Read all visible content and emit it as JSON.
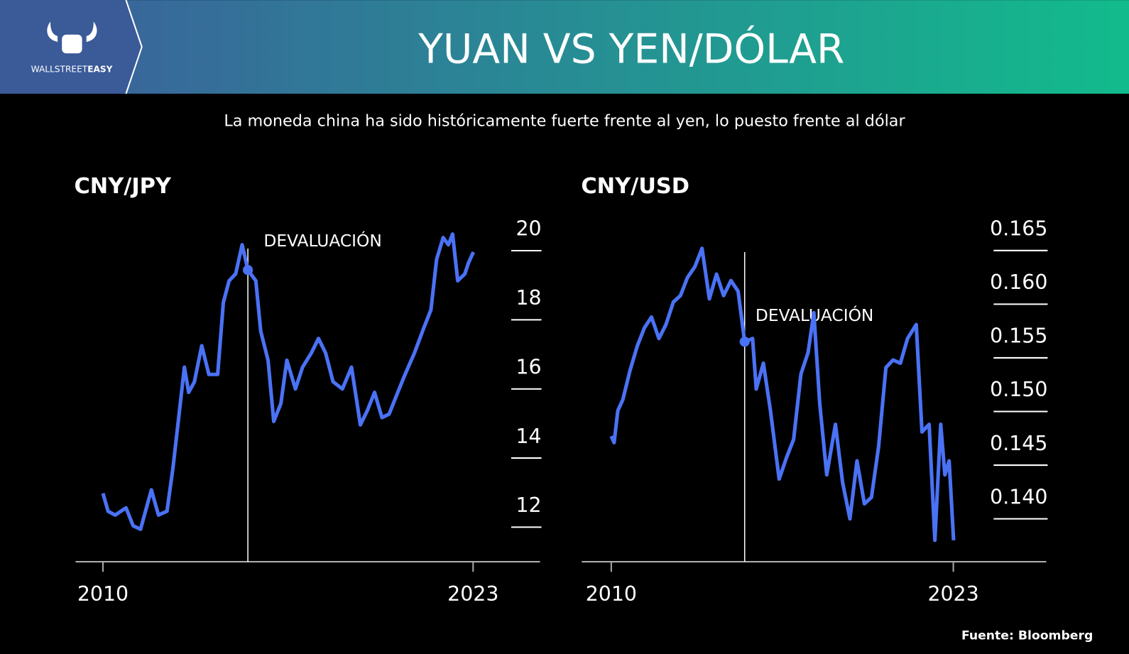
{
  "header": {
    "logo_1": "WALLSTREET",
    "logo_2": "EASY",
    "title": "YUAN VS YEN/DÓLAR"
  },
  "subtitle": "La moneda china ha sido históricamente fuerte frente al yen, lo puesto frente al dólar",
  "source": "Fuente: Bloomberg",
  "chart_data": [
    {
      "type": "line",
      "title": "CNY/JPY",
      "color": "#4a72f5",
      "x": [
        2010.0,
        2010.18,
        2010.43,
        2010.81,
        2011.06,
        2011.32,
        2011.7,
        2011.95,
        2012.25,
        2012.46,
        2012.66,
        2012.86,
        2013.01,
        2013.21,
        2013.47,
        2013.72,
        2014.03,
        2014.23,
        2014.43,
        2014.66,
        2014.89,
        2015.09,
        2015.37,
        2015.54,
        2015.8,
        2016.0,
        2016.25,
        2016.46,
        2016.76,
        2017.01,
        2017.32,
        2017.57,
        2017.82,
        2018.08,
        2018.41,
        2018.73,
        2019.04,
        2019.29,
        2019.54,
        2019.8,
        2020.05,
        2020.3,
        2020.61,
        2020.94,
        2021.27,
        2021.52,
        2021.72,
        2021.95,
        2022.13,
        2022.28,
        2022.46,
        2022.71,
        2022.84,
        2023.01
      ],
      "values": [
        12.98,
        12.46,
        12.35,
        12.56,
        12.04,
        11.94,
        13.08,
        12.35,
        12.46,
        13.71,
        15.17,
        16.63,
        15.9,
        16.2,
        17.25,
        16.42,
        16.42,
        18.5,
        19.13,
        19.33,
        20.17,
        19.44,
        19.13,
        17.67,
        16.83,
        15.06,
        15.58,
        16.83,
        16.0,
        16.63,
        17.04,
        17.46,
        17.04,
        16.21,
        16.0,
        16.63,
        14.96,
        15.38,
        15.9,
        15.17,
        15.27,
        15.79,
        16.42,
        17.04,
        17.77,
        18.29,
        19.75,
        20.38,
        20.17,
        20.48,
        19.13,
        19.33,
        19.65,
        19.96
      ],
      "xlim": [
        2009.04,
        2025.35
      ],
      "ylim": [
        11,
        21
      ],
      "xticks": [
        2010,
        2023
      ],
      "yticks": [
        12,
        14,
        16,
        18,
        20
      ],
      "annotation": {
        "text": "DEVALUACIÓN",
        "x": 2015.09,
        "y": 19.44
      }
    },
    {
      "type": "line",
      "title": "CNY/USD",
      "color": "#4a72f5",
      "x": [
        2010.0,
        2010.11,
        2010.25,
        2010.44,
        2010.71,
        2010.99,
        2011.26,
        2011.53,
        2011.81,
        2012.08,
        2012.36,
        2012.63,
        2012.9,
        2013.18,
        2013.45,
        2013.73,
        2014.0,
        2014.27,
        2014.55,
        2014.82,
        2015.07,
        2015.37,
        2015.51,
        2015.78,
        2016.05,
        2016.38,
        2016.66,
        2016.93,
        2017.21,
        2017.48,
        2017.7,
        2017.92,
        2018.19,
        2018.52,
        2018.79,
        2019.07,
        2019.34,
        2019.62,
        2019.89,
        2020.16,
        2020.44,
        2020.71,
        2020.99,
        2021.26,
        2021.59,
        2021.81,
        2022.08,
        2022.3,
        2022.52,
        2022.68,
        2022.84,
        2023.01
      ],
      "values": [
        0.1477,
        0.1471,
        0.1501,
        0.1511,
        0.1538,
        0.1561,
        0.1578,
        0.1588,
        0.1568,
        0.1581,
        0.1602,
        0.1608,
        0.1625,
        0.1635,
        0.1652,
        0.1605,
        0.1628,
        0.1608,
        0.1622,
        0.1612,
        0.1565,
        0.1568,
        0.1521,
        0.1545,
        0.1501,
        0.1437,
        0.1457,
        0.1474,
        0.1535,
        0.1555,
        0.1592,
        0.1508,
        0.1441,
        0.1488,
        0.1434,
        0.14,
        0.1454,
        0.1414,
        0.142,
        0.1467,
        0.1541,
        0.1548,
        0.1545,
        0.1568,
        0.1581,
        0.1481,
        0.1488,
        0.138,
        0.1488,
        0.1441,
        0.1454,
        0.138
      ],
      "xlim": [
        2008.88,
        2026.53
      ],
      "ylim": [
        0.136,
        0.167
      ],
      "xticks": [
        2010,
        2023
      ],
      "yticks": [
        {
          "value": 0.14,
          "label": "0.140"
        },
        0.145,
        {
          "value": 0.15,
          "label": "0.150"
        },
        0.155,
        {
          "value": 0.16,
          "label": "0.160"
        },
        0.165
      ],
      "annotation": {
        "text": "DEVALUACIÓN",
        "x": 2015.07,
        "y": 0.1565
      }
    }
  ]
}
